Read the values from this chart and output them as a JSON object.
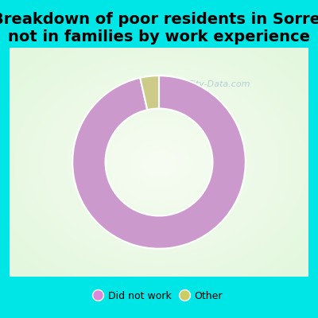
{
  "title": "Breakdown of poor residents in Sorrel\nnot in families by work experience",
  "slices": [
    96.5,
    3.5
  ],
  "labels": [
    "Did not work",
    "Other"
  ],
  "colors": [
    "#cc99cc",
    "#cccc88"
  ],
  "legend_colors": [
    "#dd88dd",
    "#cccc66"
  ],
  "background_outer": "#00e5e5",
  "donut_hole_ratio": 0.6,
  "title_fontsize": 14,
  "title_color": "#000000",
  "watermark": "City-Data.com"
}
